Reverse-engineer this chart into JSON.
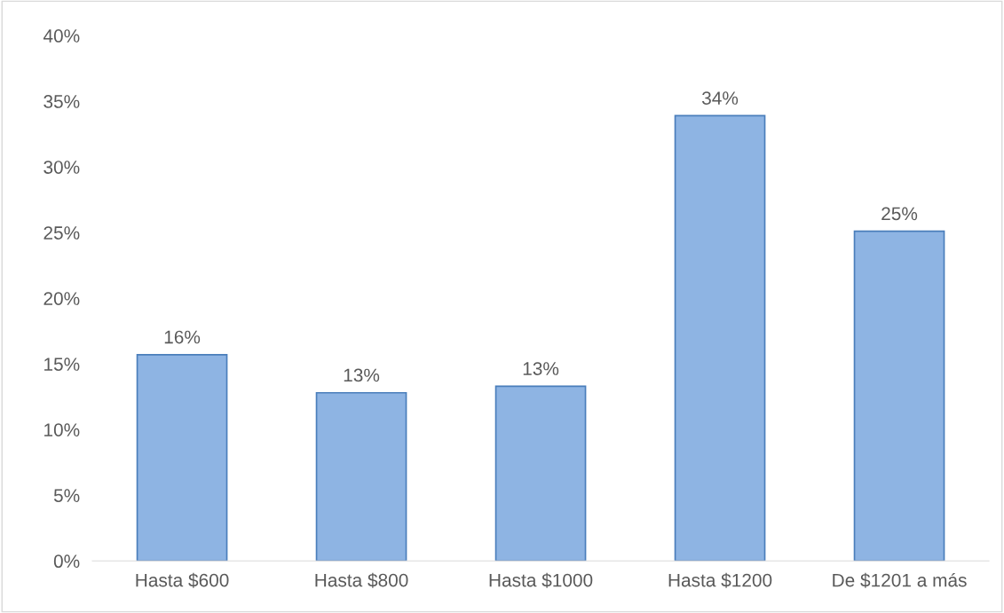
{
  "chart_data": {
    "type": "bar",
    "categories": [
      "Hasta $600",
      "Hasta $800",
      "Hasta $1000",
      "Hasta $1200",
      "De $1201 a más"
    ],
    "values": [
      15.7,
      12.8,
      13.3,
      33.9,
      25.1
    ],
    "value_labels": [
      "16%",
      "13%",
      "13%",
      "34%",
      "25%"
    ],
    "color": "#8eb4e3",
    "ylim": [
      0,
      40
    ],
    "yticks": [
      {
        "value": 0,
        "label": "0%"
      },
      {
        "value": 5,
        "label": "5%"
      },
      {
        "value": 10,
        "label": "10%"
      },
      {
        "value": 15,
        "label": "15%"
      },
      {
        "value": 20,
        "label": "20%"
      },
      {
        "value": 25,
        "label": "25%"
      },
      {
        "value": 30,
        "label": "30%"
      },
      {
        "value": 35,
        "label": "35%"
      },
      {
        "value": 40,
        "label": "40%"
      }
    ],
    "grid": false,
    "legend": false
  }
}
